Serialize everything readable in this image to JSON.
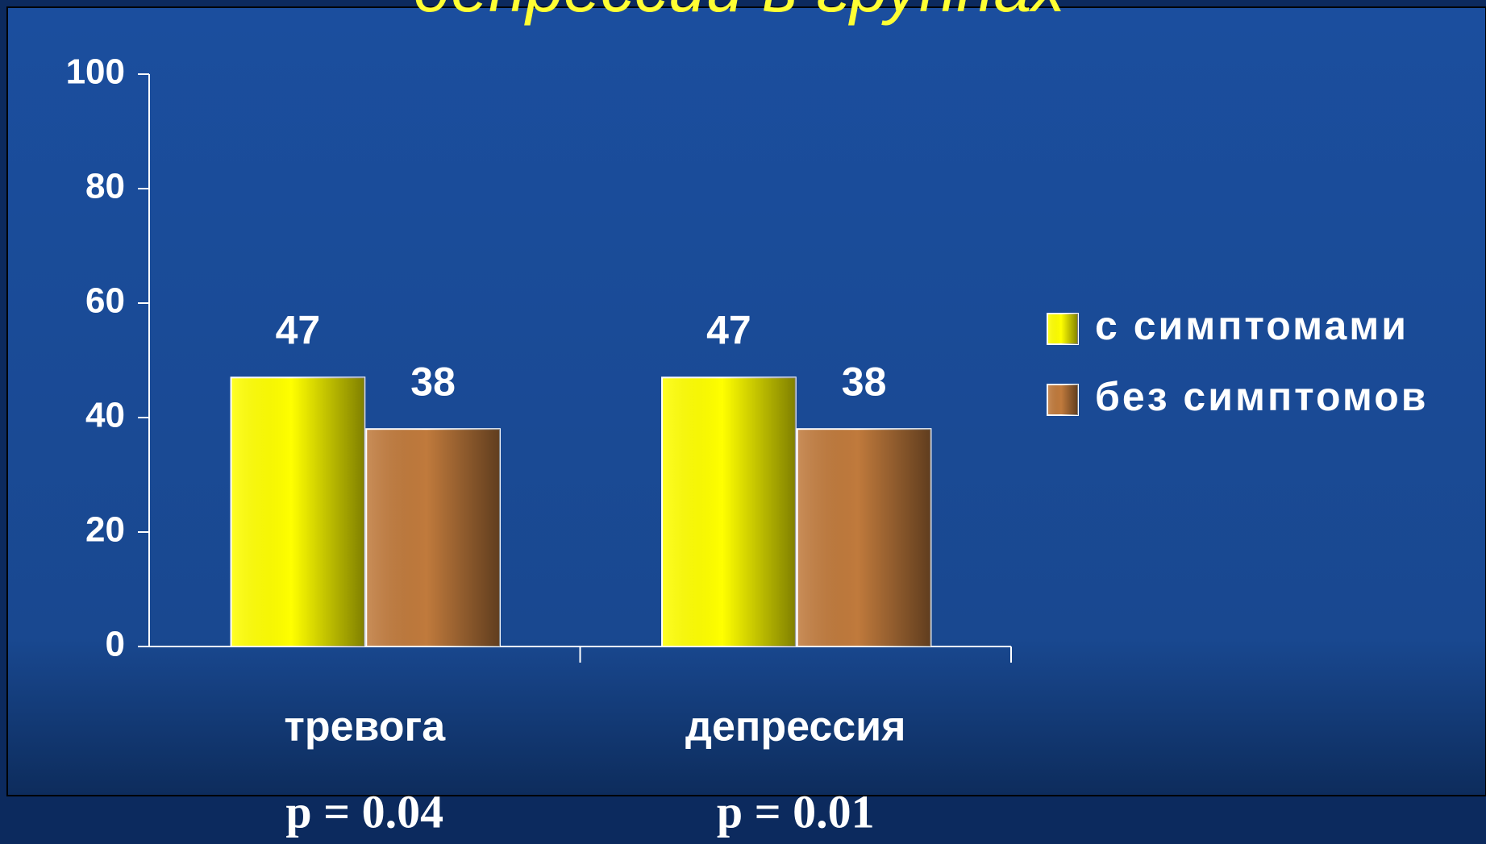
{
  "chart_data": {
    "type": "bar",
    "title": "депрессии в группах",
    "categories": [
      "тревога",
      "депрессия"
    ],
    "series": [
      {
        "name": "с симптомами",
        "color": "#ffff00",
        "values": [
          47,
          47
        ]
      },
      {
        "name": "без симптомов",
        "color": "#c07a3c",
        "values": [
          38,
          38
        ]
      }
    ],
    "ylim": [
      0,
      100
    ],
    "yticks": [
      0,
      20,
      40,
      60,
      80,
      100
    ],
    "annotations": [
      "p = 0.04",
      "p = 0.01"
    ],
    "legend": "right"
  }
}
